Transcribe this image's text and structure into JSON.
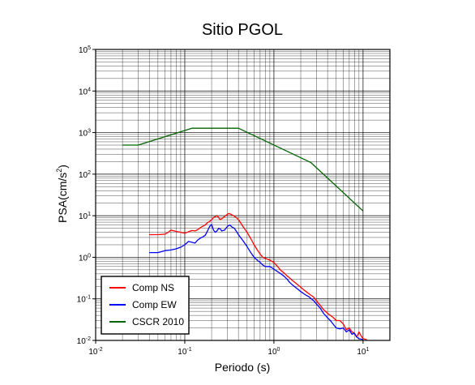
{
  "chart_data": {
    "type": "line",
    "title": "Sitio PGOL",
    "xlabel": "Periodo (s)",
    "ylabel_base": "PSA(cm/s",
    "ylabel_exp": "2",
    "ylabel_close": ")",
    "xscale": "log",
    "yscale": "log",
    "xlim": [
      0.01,
      20
    ],
    "ylim": [
      0.01,
      100000
    ],
    "grid": true,
    "legend_position": "bottom-left",
    "x_ticks": [
      {
        "base": "10",
        "exp": "-2",
        "value": 0.01
      },
      {
        "base": "10",
        "exp": "-1",
        "value": 0.1
      },
      {
        "base": "10",
        "exp": "0",
        "value": 1
      },
      {
        "base": "10",
        "exp": "1",
        "value": 10
      }
    ],
    "y_ticks": [
      {
        "base": "10",
        "exp": "-2",
        "value": 0.01
      },
      {
        "base": "10",
        "exp": "-1",
        "value": 0.1
      },
      {
        "base": "10",
        "exp": "0",
        "value": 1
      },
      {
        "base": "10",
        "exp": "1",
        "value": 10
      },
      {
        "base": "10",
        "exp": "2",
        "value": 100
      },
      {
        "base": "10",
        "exp": "3",
        "value": 1000
      },
      {
        "base": "10",
        "exp": "4",
        "value": 10000
      },
      {
        "base": "10",
        "exp": "5",
        "value": 100000
      }
    ],
    "series": [
      {
        "name": "Comp NS",
        "color": "#ff0000",
        "points": [
          [
            0.04,
            3.5
          ],
          [
            0.05,
            3.5
          ],
          [
            0.06,
            3.6
          ],
          [
            0.065,
            4.0
          ],
          [
            0.07,
            4.5
          ],
          [
            0.08,
            4.2
          ],
          [
            0.09,
            4.0
          ],
          [
            0.1,
            3.8
          ],
          [
            0.11,
            4.1
          ],
          [
            0.12,
            4.4
          ],
          [
            0.13,
            4.3
          ],
          [
            0.14,
            4.6
          ],
          [
            0.15,
            5.2
          ],
          [
            0.16,
            5.6
          ],
          [
            0.17,
            6.0
          ],
          [
            0.18,
            6.8
          ],
          [
            0.19,
            7.3
          ],
          [
            0.2,
            8.0
          ],
          [
            0.21,
            9.0
          ],
          [
            0.22,
            9.5
          ],
          [
            0.23,
            10.0
          ],
          [
            0.24,
            9.0
          ],
          [
            0.25,
            8.0
          ],
          [
            0.27,
            9.0
          ],
          [
            0.29,
            10.2
          ],
          [
            0.31,
            11.3
          ],
          [
            0.33,
            10.8
          ],
          [
            0.35,
            10.0
          ],
          [
            0.38,
            9.0
          ],
          [
            0.41,
            7.5
          ],
          [
            0.45,
            5.5
          ],
          [
            0.5,
            4.0
          ],
          [
            0.55,
            2.8
          ],
          [
            0.6,
            2.0
          ],
          [
            0.65,
            1.5
          ],
          [
            0.7,
            1.2
          ],
          [
            0.75,
            1.0
          ],
          [
            0.8,
            0.95
          ],
          [
            0.9,
            0.85
          ],
          [
            1.0,
            0.75
          ],
          [
            1.1,
            0.6
          ],
          [
            1.2,
            0.48
          ],
          [
            1.3,
            0.42
          ],
          [
            1.4,
            0.36
          ],
          [
            1.5,
            0.32
          ],
          [
            1.6,
            0.28
          ],
          [
            1.8,
            0.23
          ],
          [
            2.0,
            0.19
          ],
          [
            2.2,
            0.16
          ],
          [
            2.5,
            0.13
          ],
          [
            2.8,
            0.11
          ],
          [
            3.0,
            0.09
          ],
          [
            3.3,
            0.07
          ],
          [
            3.6,
            0.055
          ],
          [
            4.0,
            0.045
          ],
          [
            4.3,
            0.04
          ],
          [
            4.6,
            0.036
          ],
          [
            5.0,
            0.03
          ],
          [
            5.5,
            0.03
          ],
          [
            6.0,
            0.025
          ],
          [
            6.5,
            0.018
          ],
          [
            7.0,
            0.02
          ],
          [
            7.5,
            0.016
          ],
          [
            8.0,
            0.015
          ],
          [
            8.5,
            0.012
          ],
          [
            9.0,
            0.016
          ],
          [
            9.5,
            0.013
          ],
          [
            10.0,
            0.011
          ],
          [
            11.0,
            0.0105
          ]
        ]
      },
      {
        "name": "Comp EW",
        "color": "#0000ff",
        "points": [
          [
            0.04,
            1.3
          ],
          [
            0.05,
            1.3
          ],
          [
            0.06,
            1.45
          ],
          [
            0.07,
            1.5
          ],
          [
            0.08,
            1.6
          ],
          [
            0.09,
            1.75
          ],
          [
            0.1,
            2.0
          ],
          [
            0.11,
            2.4
          ],
          [
            0.12,
            2.3
          ],
          [
            0.13,
            2.2
          ],
          [
            0.14,
            2.6
          ],
          [
            0.15,
            2.9
          ],
          [
            0.16,
            3.1
          ],
          [
            0.17,
            3.4
          ],
          [
            0.18,
            4.3
          ],
          [
            0.19,
            5.5
          ],
          [
            0.2,
            6.2
          ],
          [
            0.21,
            4.5
          ],
          [
            0.22,
            4.0
          ],
          [
            0.23,
            4.3
          ],
          [
            0.24,
            5.0
          ],
          [
            0.25,
            4.8
          ],
          [
            0.26,
            4.3
          ],
          [
            0.28,
            4.5
          ],
          [
            0.3,
            5.5
          ],
          [
            0.32,
            6.0
          ],
          [
            0.34,
            5.3
          ],
          [
            0.36,
            5.0
          ],
          [
            0.38,
            4.2
          ],
          [
            0.4,
            3.5
          ],
          [
            0.45,
            2.5
          ],
          [
            0.5,
            1.8
          ],
          [
            0.55,
            1.3
          ],
          [
            0.6,
            1.0
          ],
          [
            0.65,
            0.85
          ],
          [
            0.7,
            0.75
          ],
          [
            0.75,
            0.65
          ],
          [
            0.8,
            0.6
          ],
          [
            0.9,
            0.6
          ],
          [
            1.0,
            0.52
          ],
          [
            1.1,
            0.45
          ],
          [
            1.2,
            0.4
          ],
          [
            1.3,
            0.35
          ],
          [
            1.4,
            0.3
          ],
          [
            1.5,
            0.25
          ],
          [
            1.6,
            0.22
          ],
          [
            1.8,
            0.18
          ],
          [
            2.0,
            0.15
          ],
          [
            2.2,
            0.13
          ],
          [
            2.5,
            0.11
          ],
          [
            2.8,
            0.09
          ],
          [
            3.0,
            0.075
          ],
          [
            3.3,
            0.06
          ],
          [
            3.6,
            0.045
          ],
          [
            4.0,
            0.035
          ],
          [
            4.3,
            0.03
          ],
          [
            4.6,
            0.025
          ],
          [
            5.0,
            0.02
          ],
          [
            5.5,
            0.019
          ],
          [
            6.0,
            0.02
          ],
          [
            6.5,
            0.016
          ],
          [
            7.0,
            0.018
          ],
          [
            7.5,
            0.014
          ],
          [
            8.0,
            0.015
          ],
          [
            8.5,
            0.012
          ],
          [
            9.0,
            0.011
          ],
          [
            10.0,
            0.0105
          ]
        ]
      },
      {
        "name": "CSCR 2010",
        "color": "#006400",
        "points": [
          [
            0.02,
            500
          ],
          [
            0.03,
            500
          ],
          [
            0.12,
            1270
          ],
          [
            0.4,
            1270
          ],
          [
            2.6,
            190
          ],
          [
            10.0,
            13
          ]
        ]
      }
    ]
  }
}
